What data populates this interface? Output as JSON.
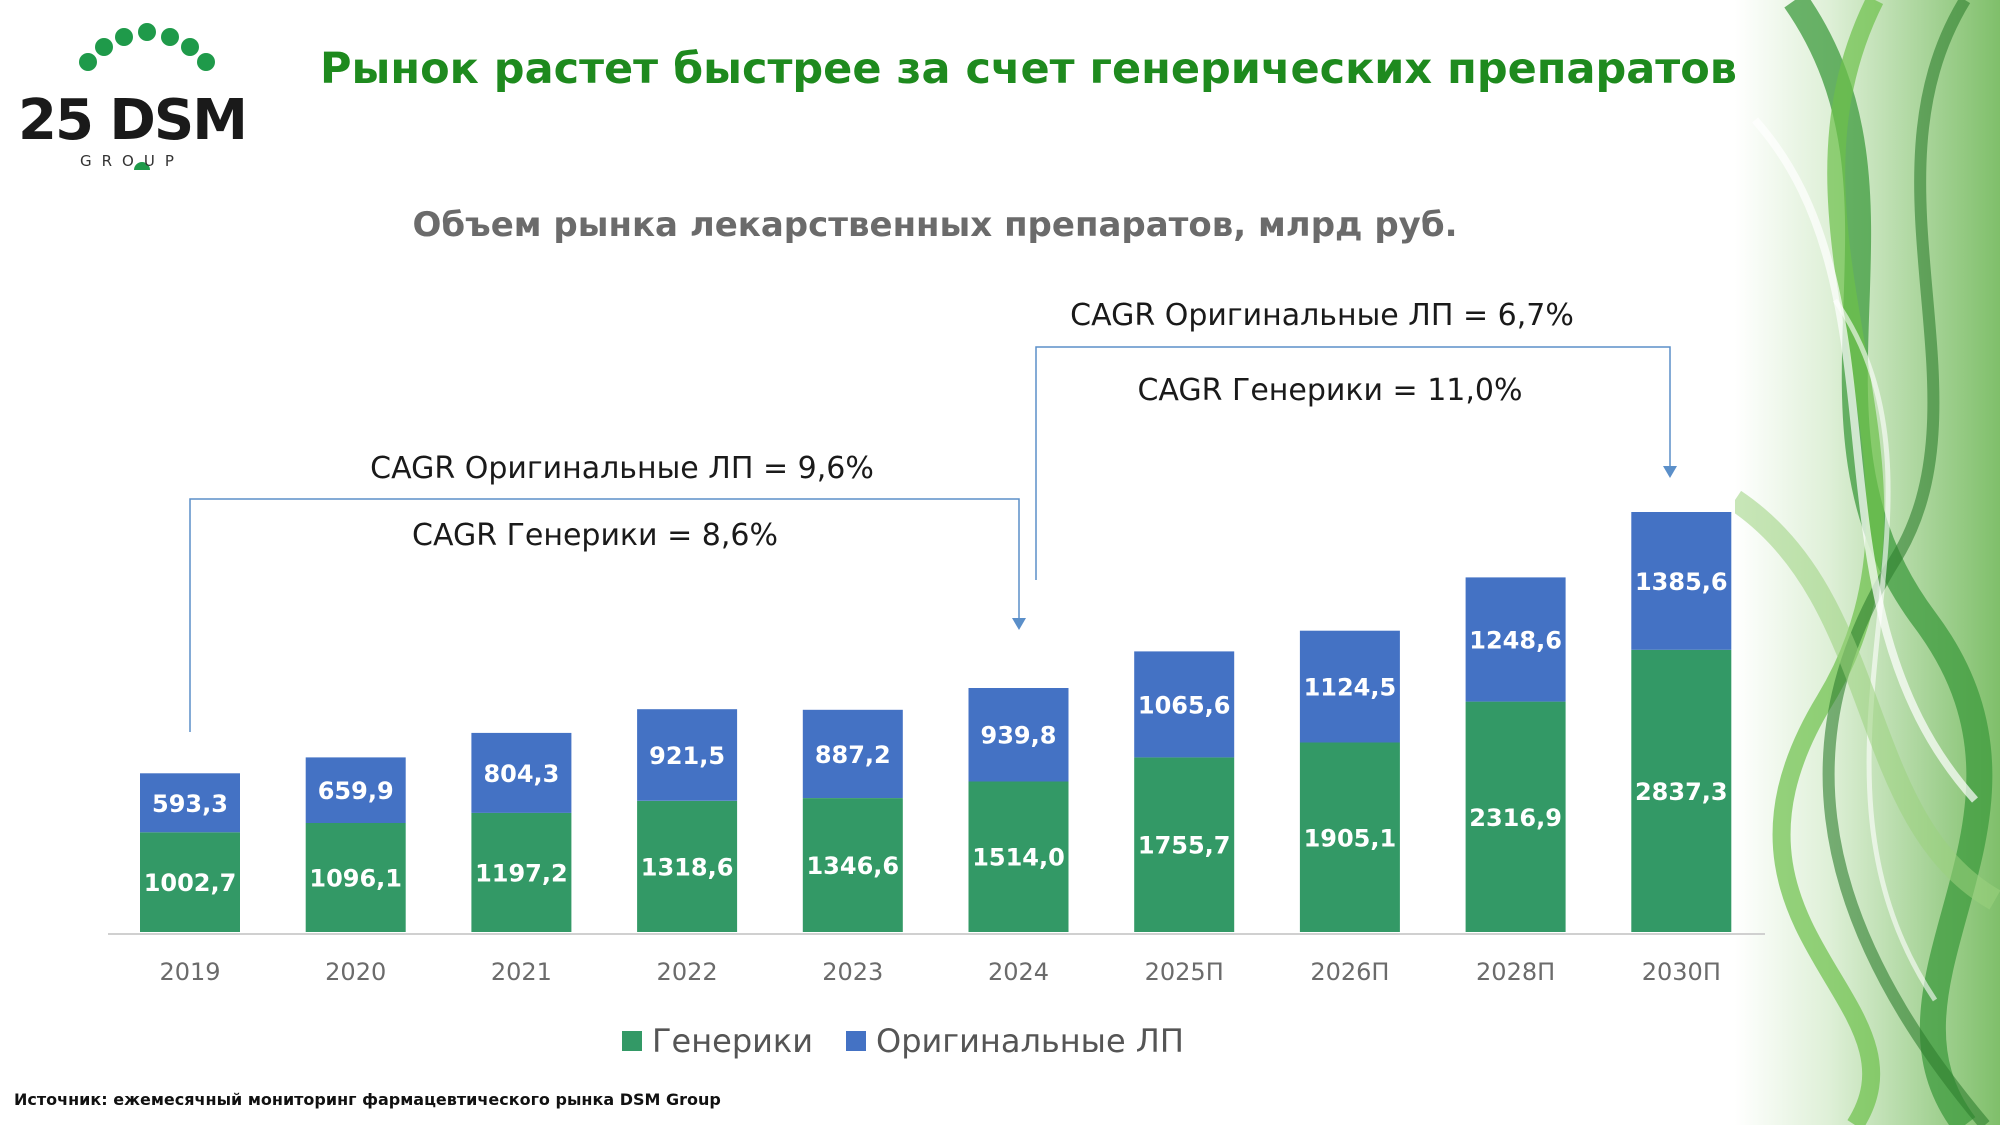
{
  "title": "Рынок растет быстрее за счет генерических препаратов",
  "logo": {
    "main": "25 DSM",
    "sub": "GROUP"
  },
  "source": "Источник: ежемесячный мониторинг фармацевтического рынка DSM Group",
  "colors": {
    "title": "#1e8a1e",
    "generics": "#339966",
    "originals": "#4472c4",
    "bracket": "#5b8fc9"
  },
  "chart_data": {
    "type": "bar",
    "stacked": true,
    "title": "Объем рынка лекарственных препаратов, млрд руб.",
    "categories": [
      "2019",
      "2020",
      "2021",
      "2022",
      "2023",
      "2024",
      "2025П",
      "2026П",
      "2028П",
      "2030П"
    ],
    "series": [
      {
        "name": "Генерики",
        "color": "#339966",
        "values": [
          1002.7,
          1096.1,
          1197.2,
          1318.6,
          1346.6,
          1514.0,
          1755.7,
          1905.1,
          2316.9,
          2837.3
        ],
        "labels": [
          "1002,7",
          "1096,1",
          "1197,2",
          "1318,6",
          "1346,6",
          "1514,0",
          "1755,7",
          "1905,1",
          "2316,9",
          "2837,3"
        ]
      },
      {
        "name": "Оригинальные ЛП",
        "color": "#4472c4",
        "values": [
          593.3,
          659.9,
          804.3,
          921.5,
          887.2,
          939.8,
          1065.6,
          1124.5,
          1248.6,
          1385.6
        ],
        "labels": [
          "593,3",
          "659,9",
          "804,3",
          "921,5",
          "887,2",
          "939,8",
          "1065,6",
          "1124,5",
          "1248,6",
          "1385,6"
        ]
      }
    ],
    "ylim": [
      0,
      4400
    ],
    "legend": "bottom",
    "annotations": [
      {
        "from": "2019",
        "to": "2024",
        "lines": [
          "CAGR Оригинальные ЛП = 9,6%",
          "CAGR Генерики = 8,6%"
        ]
      },
      {
        "from": "2024",
        "to": "2030П",
        "lines": [
          "CAGR Оригинальные ЛП = 6,7%",
          "CAGR Генерики = 11,0%"
        ]
      }
    ]
  }
}
